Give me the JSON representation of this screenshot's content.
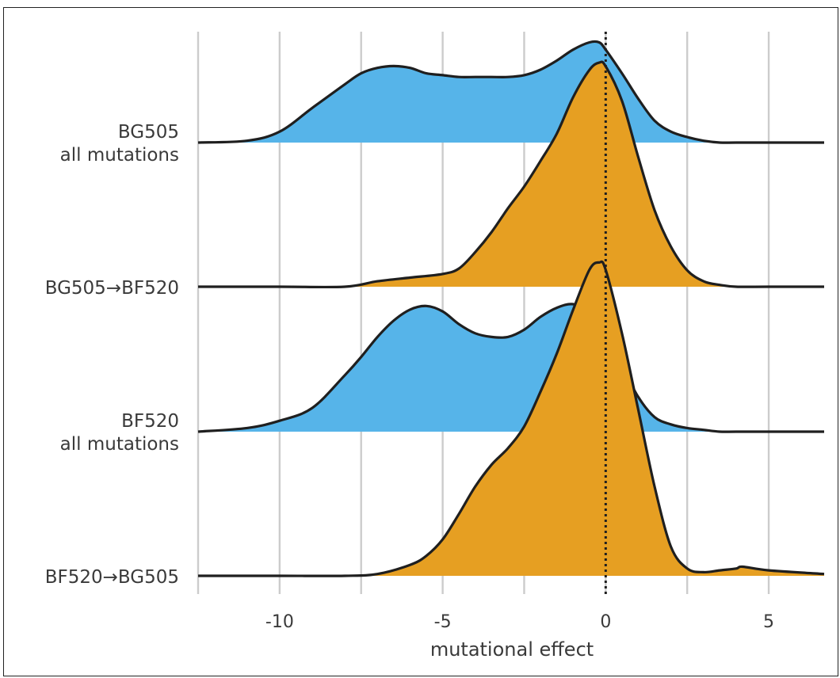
{
  "chart_data": {
    "type": "ridgeline",
    "xlabel": "mutational effect",
    "xlim": [
      -12.5,
      6.7
    ],
    "xticks": [
      -10,
      -5,
      0,
      5
    ],
    "x_tick_labels": [
      "-10",
      "-5",
      "0",
      "5"
    ],
    "vertical_gridlines": [
      -12.5,
      -10,
      -7.5,
      -5,
      -2.5,
      0,
      2.5,
      5
    ],
    "reference_line": {
      "x": 0,
      "style": "dotted"
    },
    "colors": {
      "all_mutations": "#56b4e9",
      "shifted": "#e69f22",
      "outline": "#1f1f1f",
      "grid": "#cccccc"
    },
    "series": [
      {
        "label_lines": [
          "BG505",
          "all mutations"
        ],
        "color": "#56b4e9",
        "x": [
          -12.5,
          -11,
          -10,
          -9,
          -8,
          -7.5,
          -7,
          -6.5,
          -6,
          -5.5,
          -5,
          -4.5,
          -4,
          -3.5,
          -3,
          -2.5,
          -2,
          -1.5,
          -1,
          -0.5,
          -0.2,
          0,
          0.5,
          1,
          1.5,
          2,
          2.5,
          3,
          3.5,
          4,
          5,
          6.7
        ],
        "y": [
          0.0,
          0.01,
          0.06,
          0.19,
          0.32,
          0.38,
          0.41,
          0.42,
          0.41,
          0.38,
          0.37,
          0.36,
          0.36,
          0.36,
          0.36,
          0.37,
          0.4,
          0.45,
          0.51,
          0.55,
          0.55,
          0.51,
          0.38,
          0.24,
          0.12,
          0.06,
          0.03,
          0.01,
          0.0,
          0.0,
          0.0,
          0.0
        ]
      },
      {
        "label_lines": [
          "BG505→BF520"
        ],
        "color": "#e69f22",
        "x": [
          -12.5,
          -10,
          -8,
          -7,
          -6,
          -5,
          -4.5,
          -4,
          -3.5,
          -3,
          -2.5,
          -2,
          -1.5,
          -1,
          -0.5,
          -0.2,
          0,
          0.5,
          1,
          1.5,
          2,
          2.5,
          3,
          3.5,
          4,
          5,
          6.7
        ],
        "y": [
          0.0,
          0.0,
          0.0,
          0.03,
          0.05,
          0.07,
          0.1,
          0.19,
          0.3,
          0.43,
          0.55,
          0.69,
          0.84,
          1.04,
          1.19,
          1.23,
          1.21,
          1.02,
          0.71,
          0.42,
          0.22,
          0.09,
          0.03,
          0.01,
          0.0,
          0.0,
          0.0
        ]
      },
      {
        "label_lines": [
          "BF520",
          "all mutations"
        ],
        "color": "#56b4e9",
        "x": [
          -12.5,
          -11,
          -10,
          -9,
          -8,
          -7.5,
          -7,
          -6.5,
          -6,
          -5.5,
          -5,
          -4.5,
          -4,
          -3.5,
          -3,
          -2.5,
          -2,
          -1.5,
          -1,
          -0.5,
          0,
          0.5,
          1,
          1.5,
          2,
          2.5,
          3,
          3.5,
          4,
          5,
          6.7
        ],
        "y": [
          0.0,
          0.02,
          0.06,
          0.13,
          0.31,
          0.41,
          0.52,
          0.61,
          0.67,
          0.69,
          0.66,
          0.59,
          0.54,
          0.52,
          0.52,
          0.56,
          0.63,
          0.68,
          0.7,
          0.66,
          0.53,
          0.36,
          0.19,
          0.08,
          0.04,
          0.02,
          0.01,
          0.0,
          0.0,
          0.0,
          0.0
        ]
      },
      {
        "label_lines": [
          "BF520→BG505"
        ],
        "color": "#e69f22",
        "x": [
          -12.5,
          -10,
          -8,
          -7,
          -6,
          -5.5,
          -5,
          -4.5,
          -4,
          -3.5,
          -3,
          -2.5,
          -2,
          -1.5,
          -1,
          -0.5,
          -0.2,
          0,
          0.5,
          1,
          1.5,
          2,
          2.5,
          3,
          3.5,
          4,
          4.2,
          5,
          6.7
        ],
        "y": [
          0.0,
          0.0,
          0.0,
          0.01,
          0.06,
          0.11,
          0.2,
          0.34,
          0.49,
          0.61,
          0.7,
          0.82,
          1.01,
          1.22,
          1.46,
          1.68,
          1.72,
          1.68,
          1.33,
          0.91,
          0.49,
          0.16,
          0.04,
          0.02,
          0.03,
          0.04,
          0.05,
          0.03,
          0.01
        ]
      }
    ]
  }
}
